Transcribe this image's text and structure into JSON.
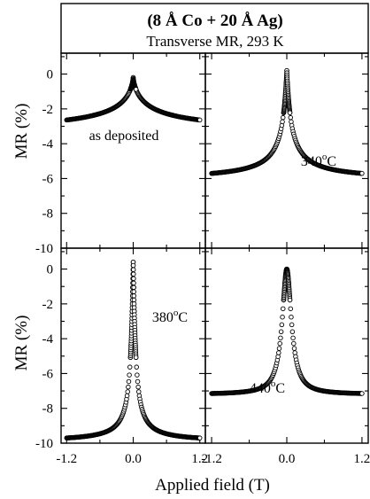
{
  "figure": {
    "title_line1": "(8 Å Co + 20 Å Ag)",
    "title_line2": "Transverse MR, 293 K",
    "xlabel": "Applied field (T)",
    "ylabel": "MR (%)"
  },
  "chart_data": [
    {
      "type": "scatter",
      "label": "as deposited",
      "xlabel": "Applied field (T)",
      "ylabel": "MR (%)",
      "xlim": [
        -1.3,
        1.3
      ],
      "ylim": [
        -10,
        1.2
      ],
      "x_ticks": [
        "-1.2",
        "0.0",
        "1.2"
      ],
      "y_ticks": [
        "0",
        "-2",
        "-4",
        "-6",
        "-8",
        "-10"
      ],
      "curve": {
        "peak": -0.2,
        "sat": -3.5,
        "width": 0.3,
        "exponent": 0.75
      }
    },
    {
      "type": "scatter",
      "label": "340°C",
      "label_main": "340",
      "label_sup": "o",
      "label_unit": "C",
      "xlabel": "Applied field (T)",
      "ylabel": "MR (%)",
      "xlim": [
        -1.3,
        1.3
      ],
      "ylim": [
        -10,
        1.2
      ],
      "x_ticks": [
        "-1.2",
        "0.0",
        "1.2"
      ],
      "y_ticks": [
        "0",
        "-2",
        "-4",
        "-6",
        "-8",
        "-10"
      ],
      "curve": {
        "peak": 0.2,
        "sat": -6.1,
        "width": 0.08,
        "exponent": 1.0
      }
    },
    {
      "type": "scatter",
      "label": "380°C",
      "label_main": "380",
      "label_sup": "o",
      "label_unit": "C",
      "xlabel": "Applied field (T)",
      "ylabel": "MR (%)",
      "xlim": [
        -1.3,
        1.3
      ],
      "ylim": [
        -10,
        1.2
      ],
      "x_ticks": [
        "-1.2",
        "0.0",
        "1.2"
      ],
      "y_ticks": [
        "0",
        "-2",
        "-4",
        "-6",
        "-8",
        "-10"
      ],
      "curve": {
        "peak": 0.4,
        "sat": -9.9,
        "width": 0.045,
        "exponent": 1.2
      }
    },
    {
      "type": "scatter",
      "label": "440°C",
      "label_main": "440",
      "label_sup": "o",
      "label_unit": "C",
      "xlabel": "Applied field (T)",
      "ylabel": "MR (%)",
      "xlim": [
        -1.3,
        1.3
      ],
      "ylim": [
        -10,
        1.2
      ],
      "x_ticks": [
        "-1.2",
        "0.0",
        "1.2"
      ],
      "y_ticks": [
        "0",
        "-2",
        "-4",
        "-6",
        "-8",
        "-10"
      ],
      "curve": {
        "peak": 0.0,
        "sat": -7.2,
        "width": 0.09,
        "exponent": 1.9
      }
    }
  ]
}
